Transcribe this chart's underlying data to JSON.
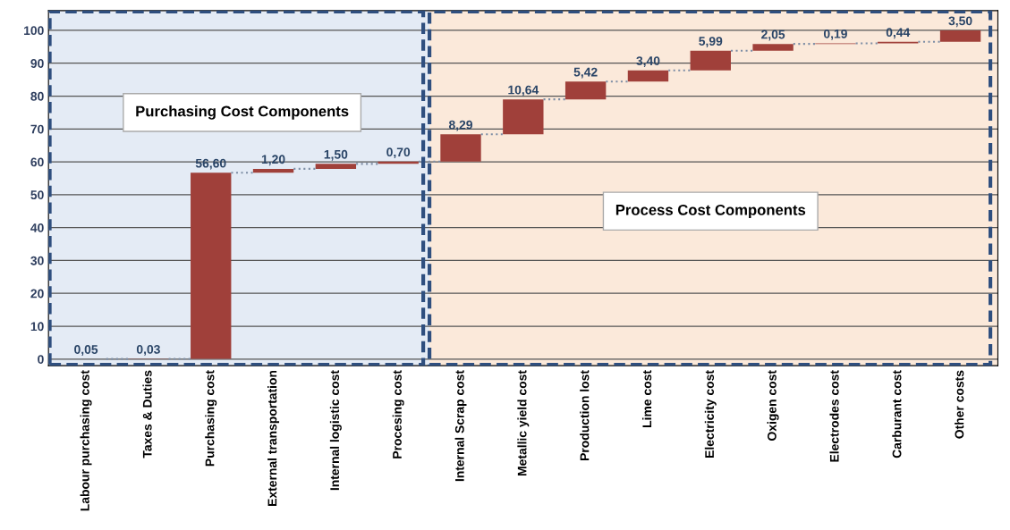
{
  "chart_data": {
    "type": "bar",
    "categories": [
      "Labour purchasing cost",
      "Taxes & Duties",
      "Purchasing cost",
      "External transportation",
      "Internal logistic cost",
      "Procesing cost",
      "Internal Scrap cost",
      "Metallic yield cost",
      "Production lost",
      "Lime cost",
      "Electricity cost",
      "Oxigen cost",
      "Electrodes cost",
      "Carburant cost",
      "Other costs"
    ],
    "values": [
      0.05,
      0.03,
      56.6,
      1.2,
      1.5,
      0.7,
      8.29,
      10.64,
      5.42,
      3.4,
      5.99,
      2.05,
      0.19,
      0.44,
      3.5
    ],
    "base": [
      0,
      0.05,
      0.08,
      56.68,
      57.88,
      59.38,
      60.08,
      68.37,
      79.01,
      84.43,
      87.83,
      93.82,
      95.87,
      96.06,
      96.5
    ],
    "value_labels": [
      "0,05",
      "0,03",
      "56,60",
      "1,20",
      "1,50",
      "0,70",
      "8,29",
      "10,64",
      "5,42",
      "3,40",
      "5,99",
      "2,05",
      "0,19",
      "0,44",
      "3,50"
    ],
    "color": "#a0403a",
    "ylim": [
      -2,
      106
    ],
    "yticks": [
      0,
      10,
      20,
      30,
      40,
      50,
      60,
      70,
      80,
      90,
      100
    ],
    "grid": "y",
    "legend": false,
    "bands": [
      {
        "axis": "x",
        "from": "Labour purchasing cost",
        "to": "Procesing cost",
        "label": "Purchasing Cost Components",
        "color": "#e4ebf5"
      },
      {
        "axis": "x",
        "from": "Internal Scrap cost",
        "to": "Other costs",
        "label": "Process Cost Components",
        "color": "#fbe9da"
      }
    ]
  }
}
